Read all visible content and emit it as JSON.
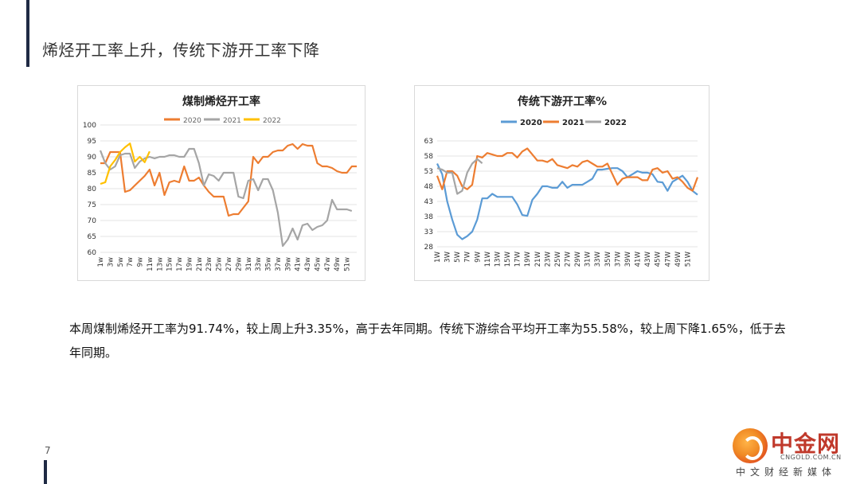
{
  "page": {
    "title": "烯烃开工率上升，传统下游开工率下降",
    "body_text": "本周煤制烯烃开工率为91.74%，较上周上升3.35%，高于去年同期。传统下游综合平均开工率为55.58%，较上周下降1.65%，低于去年同期。",
    "page_number": "7"
  },
  "logo": {
    "name": "中金网",
    "domain": "CNGOLD.COM.CN",
    "slogan": "中文财经新媒体"
  },
  "colors": {
    "2020_orange": "#ed7d31",
    "2021_gray": "#a5a5a5",
    "2022_yellow": "#ffc000",
    "2020_blue": "#5b9bd5"
  },
  "chart_data": [
    {
      "type": "line",
      "title": "煤制烯烃开工率",
      "xlabel": "",
      "ylabel": "",
      "ylim": [
        60,
        100
      ],
      "yticks": [
        100,
        95,
        90,
        85,
        80,
        75,
        70,
        65,
        60
      ],
      "grid": true,
      "legend": "top",
      "x_tick_labels": [
        "1w",
        "3w",
        "5w",
        "7w",
        "9w",
        "11w",
        "13w",
        "15w",
        "17w",
        "19w",
        "21w",
        "23w",
        "25w",
        "27w",
        "29w",
        "31w",
        "33w",
        "35w",
        "37w",
        "39w",
        "41w",
        "43w",
        "45w",
        "47w",
        "49w",
        "51w"
      ],
      "x_count": 53,
      "series": [
        {
          "name": "2020",
          "color": "#ed7d31",
          "values": [
            88,
            88,
            91.5,
            91.5,
            91.5,
            79,
            79.5,
            81,
            82.5,
            84,
            86,
            81,
            85,
            78,
            82,
            82.5,
            82,
            87,
            82.5,
            82.5,
            83.5,
            81,
            79,
            77.5,
            77.5,
            77.5,
            71.5,
            72,
            72,
            74,
            76,
            90,
            88,
            90,
            90,
            91.5,
            92,
            92,
            93.5,
            94,
            92.5,
            94,
            93.5,
            93.5,
            88,
            87,
            87,
            86.5,
            85.5,
            85,
            85,
            87,
            87
          ]
        },
        {
          "name": "2021",
          "color": "#a5a5a5",
          "values": [
            92,
            88,
            86,
            87,
            90.5,
            91,
            91,
            86.5,
            88.5,
            89.5,
            90,
            89.5,
            90,
            90,
            90.5,
            90.5,
            90,
            90,
            92.5,
            92.5,
            88,
            81,
            84.5,
            84,
            82.5,
            85,
            85,
            85,
            77.5,
            77,
            82.5,
            83,
            79.5,
            83,
            83,
            79.5,
            72.5,
            62,
            64,
            67.5,
            64,
            68.5,
            69,
            67,
            68,
            68.5,
            70,
            76.5,
            73.5,
            73.5,
            73.5,
            73
          ]
        },
        {
          "name": "2022",
          "color": "#ffc000",
          "values": [
            81.5,
            82,
            87,
            89,
            91.5,
            93,
            94.2,
            88.5,
            90,
            88.3,
            91.7
          ]
        }
      ]
    },
    {
      "type": "line",
      "title": "传统下游开工率%",
      "xlabel": "",
      "ylabel": "",
      "ylim": [
        28,
        63
      ],
      "yticks": [
        63,
        58,
        53,
        48,
        43,
        38,
        33,
        28
      ],
      "grid": true,
      "legend": "top",
      "x_tick_labels": [
        "1W",
        "3W",
        "5W",
        "7W",
        "9W",
        "11W",
        "13W",
        "15W",
        "17W",
        "19W",
        "21W",
        "23W",
        "25W",
        "27W",
        "29W",
        "31W",
        "33W",
        "35W",
        "37W",
        "39W",
        "41W",
        "43W",
        "45W",
        "47W",
        "49W",
        "51W"
      ],
      "x_count": 53,
      "series": [
        {
          "name": "2020",
          "color": "#5b9bd5",
          "values": [
            55.5,
            52,
            43,
            37,
            32,
            30.5,
            31.5,
            33,
            37,
            44,
            44,
            45.5,
            44.5,
            44.5,
            44.5,
            44.5,
            42,
            38.5,
            38.2,
            43.5,
            45.5,
            48,
            48,
            47.5,
            47.5,
            49.5,
            47.5,
            48.5,
            48.5,
            48.5,
            49.5,
            50.5,
            53.5,
            53.5,
            53.8,
            54,
            54,
            53,
            51,
            52,
            53,
            52.5,
            52.5,
            52,
            49.5,
            49.3,
            46.5,
            49.5,
            50.5,
            51.5,
            49.5,
            46.5,
            45.2
          ]
        },
        {
          "name": "2021",
          "color": "#ed7d31",
          "values": [
            51.5,
            47,
            53,
            53,
            51.5,
            48,
            47,
            48.5,
            58,
            57.5,
            59,
            58.5,
            58,
            58,
            59,
            59,
            57.5,
            59.5,
            60.5,
            58.5,
            56.5,
            56.5,
            56,
            57,
            55,
            54.5,
            54,
            55,
            54.5,
            56,
            56.5,
            55.5,
            54.5,
            54.5,
            55.5,
            52,
            48.5,
            50.5,
            51,
            51,
            51,
            50,
            50,
            53.5,
            54,
            52.5,
            53,
            50.5,
            51,
            49.5,
            47.5,
            46.5,
            51
          ]
        },
        {
          "name": "2022",
          "color": "#a5a5a5",
          "values": [
            54,
            53.5,
            52.5,
            52.5,
            45.5,
            46.5,
            52.5,
            55.5,
            57,
            55.6
          ]
        }
      ]
    }
  ]
}
